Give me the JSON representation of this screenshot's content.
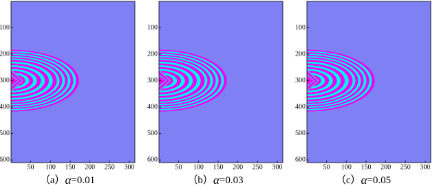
{
  "chart_data": [
    {
      "type": "image",
      "caption_label": "（a）",
      "caption_symbol": "α",
      "caption_value": "=0.01",
      "xlim": [
        0,
        314
      ],
      "xticks": [
        50,
        100,
        150,
        200,
        250,
        300
      ],
      "ylim": [
        0,
        610
      ],
      "yticks": [
        100,
        200,
        300,
        400,
        500,
        600
      ]
    },
    {
      "type": "image",
      "caption_label": "（b）",
      "caption_symbol": "α",
      "caption_value": "=0.03",
      "xlim": [
        0,
        314
      ],
      "xticks": [
        50,
        100,
        150,
        200,
        250,
        300
      ],
      "ylim": [
        0,
        610
      ],
      "yticks": [
        100,
        200,
        300,
        400,
        500,
        600
      ]
    },
    {
      "type": "image",
      "caption_label": "（c）",
      "caption_symbol": "α",
      "caption_value": "=0.05",
      "xlim": [
        0,
        314
      ],
      "xticks": [
        50,
        100,
        150,
        200,
        250,
        300
      ],
      "ylim": [
        0,
        610
      ],
      "yticks": [
        100,
        200,
        300,
        400,
        500,
        600
      ]
    }
  ]
}
